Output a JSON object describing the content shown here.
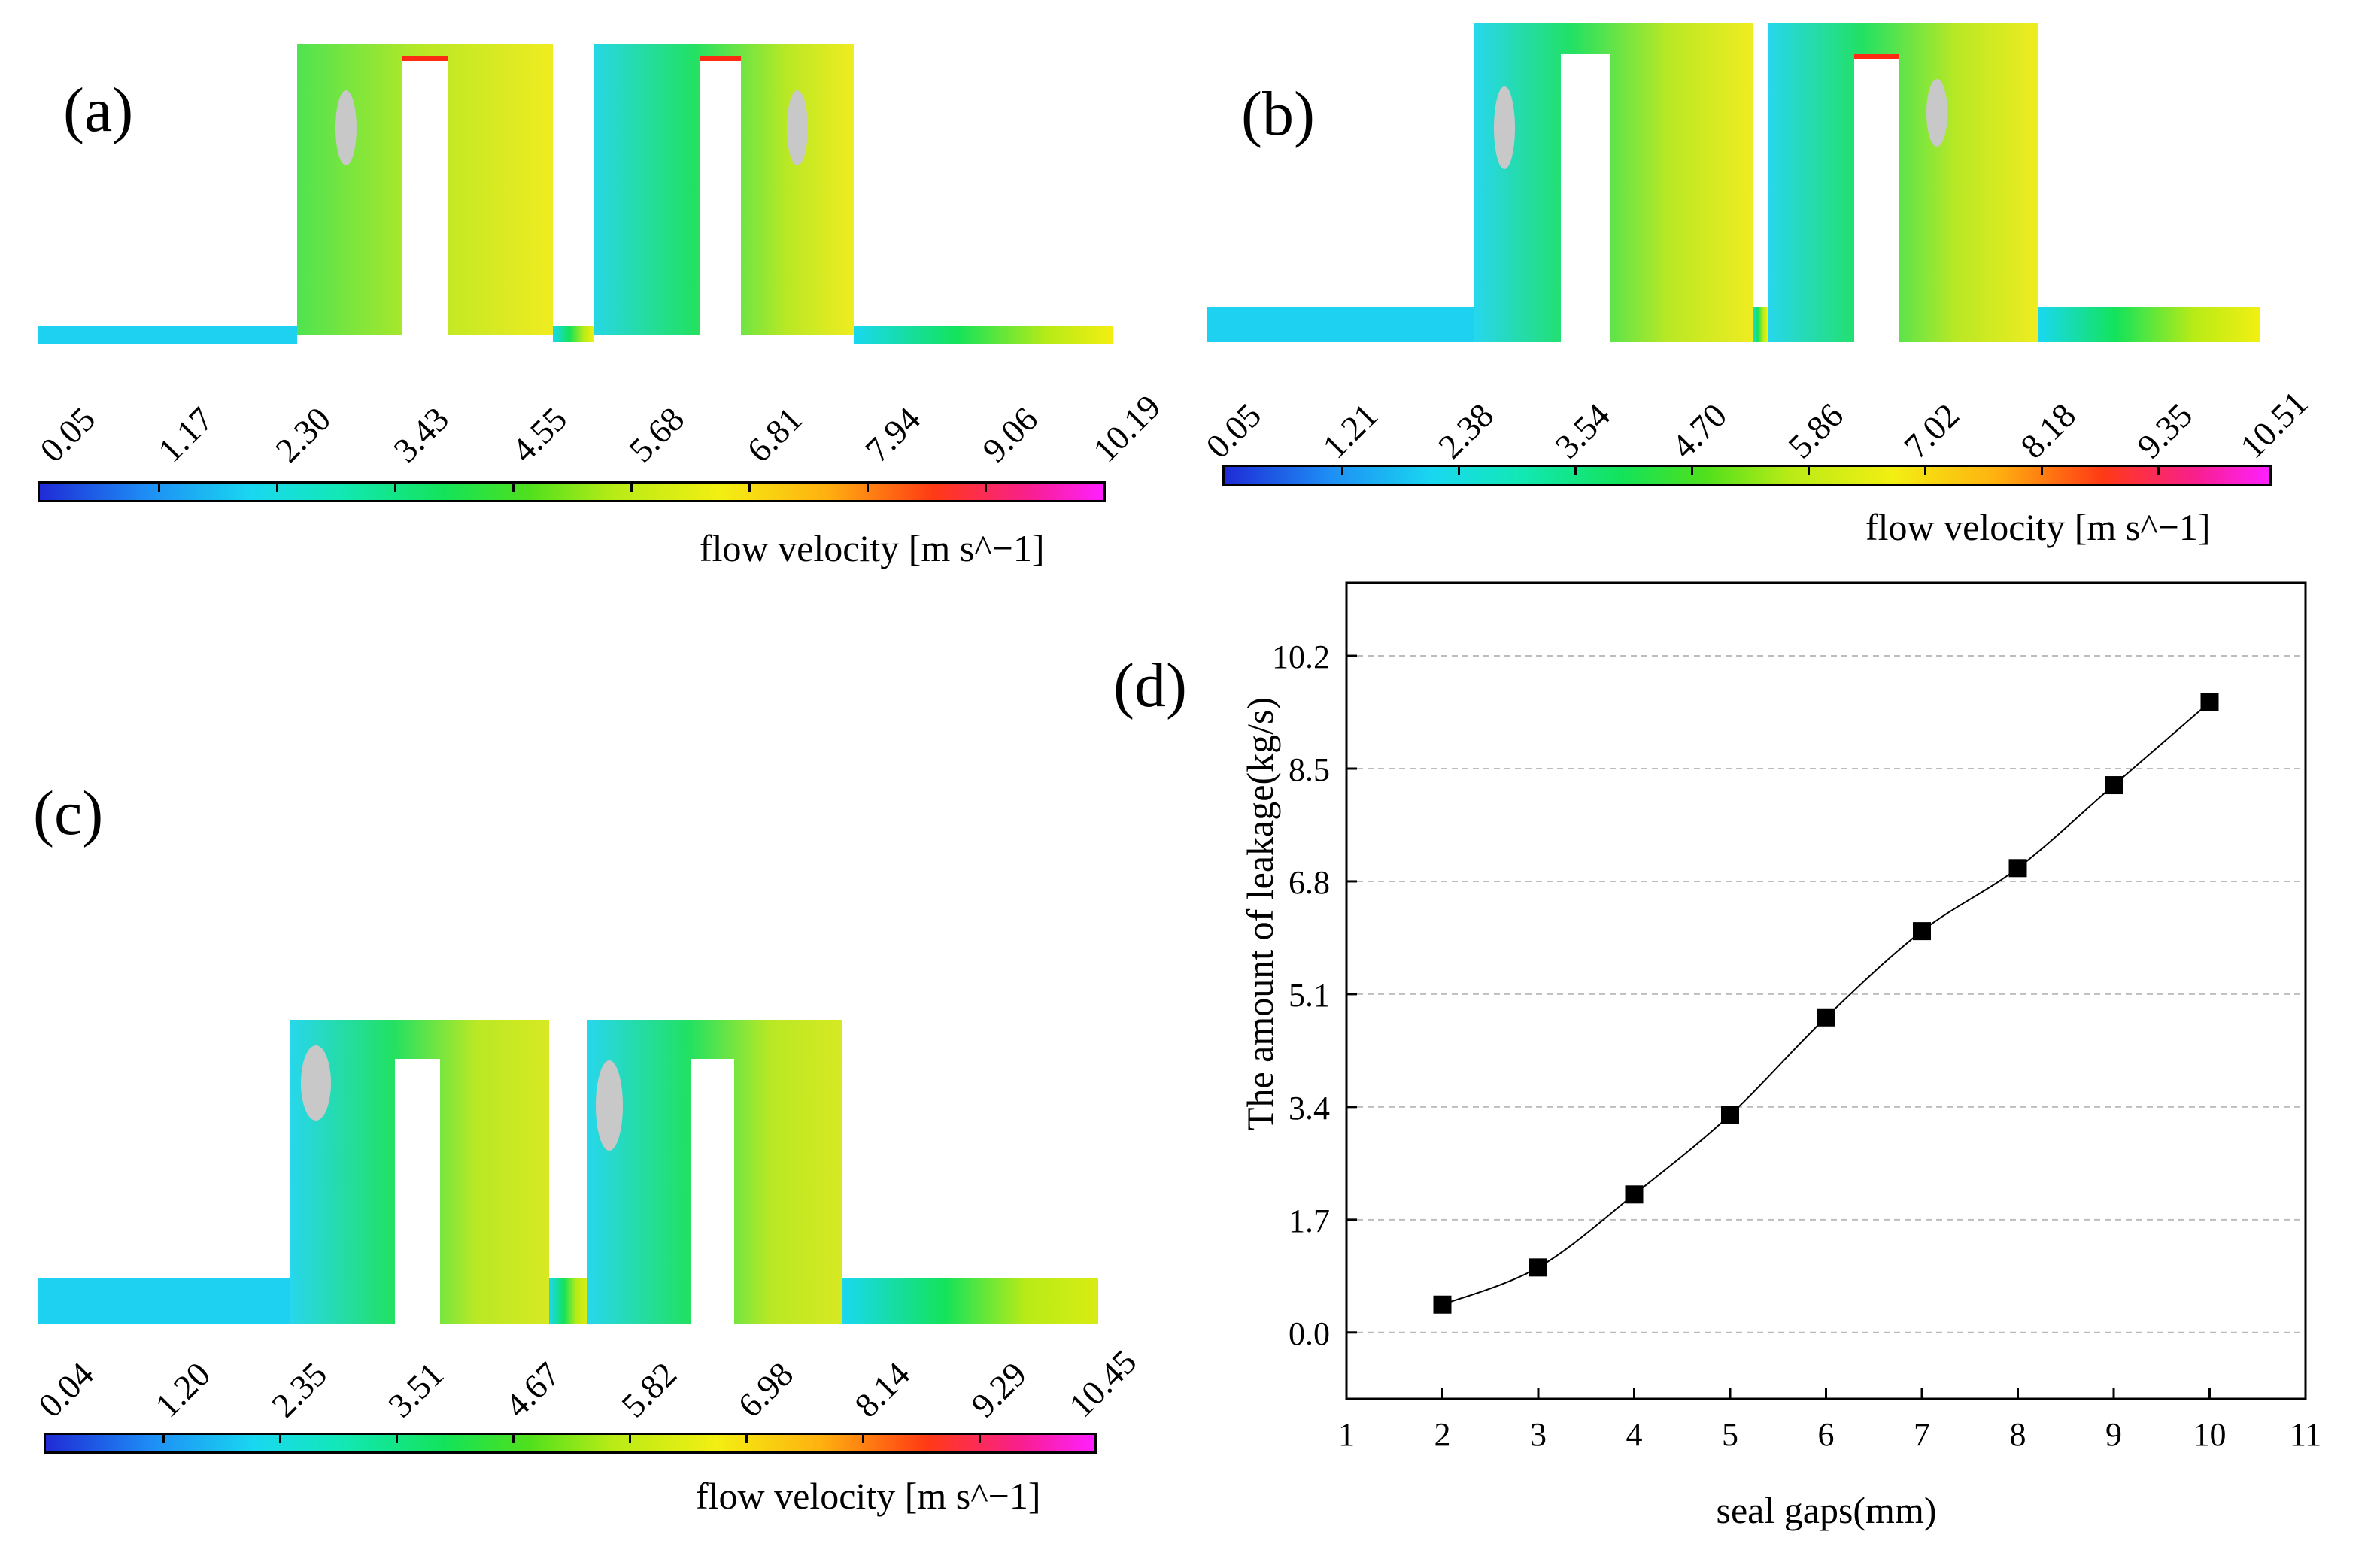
{
  "panels": {
    "a": {
      "label": "(a)",
      "colorbar": {
        "ticks": [
          "0.05",
          "1.17",
          "2.30",
          "3.43",
          "4.55",
          "5.68",
          "6.81",
          "7.94",
          "9.06",
          "10.19"
        ],
        "title": "flow velocity [m s^−1]"
      }
    },
    "b": {
      "label": "(b)",
      "colorbar": {
        "ticks": [
          "0.05",
          "1.21",
          "2.38",
          "3.54",
          "4.70",
          "5.86",
          "7.02",
          "8.18",
          "9.35",
          "10.51"
        ],
        "title": "flow velocity [m s^−1]"
      }
    },
    "c": {
      "label": "(c)",
      "colorbar": {
        "ticks": [
          "0.04",
          "1.20",
          "2.35",
          "3.51",
          "4.67",
          "5.82",
          "6.98",
          "8.14",
          "9.29",
          "10.45"
        ],
        "title": "flow velocity [m s^−1]"
      }
    },
    "d": {
      "label": "(d)"
    }
  },
  "chart_data": {
    "type": "line",
    "title": "",
    "xlabel": "seal gaps(mm)",
    "ylabel": "The amount of leakage(kg/s)",
    "xlim": [
      1,
      11
    ],
    "ylim": [
      -1.0,
      11.3
    ],
    "xticks": [
      "1",
      "2",
      "3",
      "4",
      "5",
      "6",
      "7",
      "8",
      "9",
      "10",
      "11"
    ],
    "yticks": [
      "0.0",
      "1.7",
      "3.4",
      "5.1",
      "6.8",
      "8.5",
      "10.2"
    ],
    "grid": "horizontal dashed",
    "marker": "square",
    "series": [
      {
        "name": "leakage",
        "x": [
          2,
          3,
          4,
          5,
          6,
          7,
          8,
          9,
          10
        ],
        "values": [
          0.42,
          0.98,
          2.08,
          3.28,
          4.75,
          6.05,
          7.0,
          8.25,
          9.5
        ]
      }
    ]
  }
}
